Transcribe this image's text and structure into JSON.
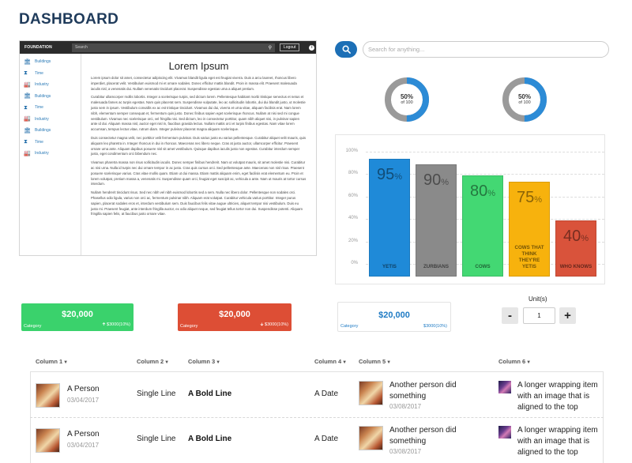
{
  "page": {
    "title": "DASHBOARD"
  },
  "foundation": {
    "brand": "FOUNDATION",
    "search_placeholder": "Search",
    "logout": "Logout",
    "info_icon": "i",
    "sidebar": [
      {
        "label": "Buildings",
        "icon": "building-icon"
      },
      {
        "label": "Time",
        "icon": "hourglass-icon"
      },
      {
        "label": "Industry",
        "icon": "factory-icon"
      },
      {
        "label": "Buildings",
        "icon": "building-icon"
      },
      {
        "label": "Time",
        "icon": "hourglass-icon"
      },
      {
        "label": "Industry",
        "icon": "factory-icon"
      },
      {
        "label": "Buildings",
        "icon": "building-icon"
      },
      {
        "label": "Time",
        "icon": "hourglass-icon"
      },
      {
        "label": "Industry",
        "icon": "factory-icon"
      }
    ],
    "heading": "Lorem Ipsum",
    "paragraphs": [
      "Lorem ipsum dolor sit amet, consectetur adipiscing elit. Vivamus blandit ligula eget est feugiat viverra. Duis a arcu laoreet, rhoncus libero imperdiet, placerat velit. Vestibulum euismod mi et ornare sodales. Donec efficitur mattis blandit. Proin in massa elit. Praesent malesuada iaculis nisl, a venenatis dui. Nullam venenatis tincidunt placerat. Suspendisse egestas urna a aliquet pretium.",
      "Curabitur ullamcorper mollis lobortis. Integer a scelerisque turpis, sed dictum lorem. Pellentesque habitant morbi tristique senectus et netus et malesuada fames ac turpis egestas. Nam quis placerat sem. Suspendisse vulputate, leo ac sollicitudin lobortis, dui dui blandit justo, ut molestie justo sem in ipsum. Vestibulum convallis ex ac est tristique tincidunt. Vivamus dui dui, viverra et urna vitae, aliquam facilisis erat. Nam lorem nibh, elementum semper consequat et, fermentum quis justo. Donec finibus sapien eget scelerisque rhoncus. Nullam at nisi sed mi congue vestibulum. Vivamus nec scelerisque orci, vel fringilla nisi. Sed dictum, leo in consectetur porttitor, quam nibh aliquet nisi, in pulvinar sapien ante id dui. Aliquam massa nisl, auctor eget nisl in, faucibus gravida lectus. Nullam mattis orci et turpis finibus egestas. Nam vitae lorem accumsan, tempus lectus vitae, rutrum diam. Integer pulvinar placerat magna aliquam scelerisque.",
      "Duis consectetur magna velit, nec porttitor velit fermentum pulvinar. Duis varius justo eu varius pellentesque. Curabitur aliquet velit mauris, quis aliquam leo pharetra in. Integer rhoncus in dui in rhoncus. Maecenas nec libero neque. Cras at justo auctor, ullamcorper efficitur. Praesent ornare urna ante. Aliquam dapibus posuere nisl sit amet vestibulum. Quisque dapibus iaculis justo non egestas. Curabitur interdum semper justo, eget condimentum orci bibendum nec.",
      "Vivamus pharetra massa non risus sollicitudin iaculis. Donec semper finibus hendrerit. Nam ut volutpat mauris, sit amet molestie nisi. Curabitur ac nisi urna. Nulla id turpis nec dui ornare tempor in ac justo. Cras quis cursus orci. Sed pellentesque ante. Maecenas non nisl risus. Praesent posuere scelerisque varius. Cras vitae mollis quam. Etiam ut dui massa. Etiam mattis aliquam enim, eget facilisis erat elementum eu. Proin et lorem volutpat, pretium massa a, venenatis mi. Suspendisse quam orci, feugiat eget suscipit ac, vehicula a ante. Nam ut mauris at tortor cursus interdum.",
      "Nullam hendrerit tincidunt risus. Sed nec nibh vel nibh euismod lobortis sed a sem. Nulla nec libero dolor. Pellentesque non sodales orci. Phasellus odio ligula, varius non orci ac, fermentum pulvinar nibh. Aliquam erat volutpat. Curabitur vehicula varius porttitor. Integer purus sapien, placerat sodales eros et, interdum vestibulum sem. Duis faucibus felis vitae augue ultricies, aliquet tempor nisi vestibulum. Duis eu justo mi. Praesent feugiat, ante interdum fringilla auctor, ex odio aliquet neque, sed feugiat tellus tortor non dui. Suspendisse potenti. Aliquam fringilla sapien felis, at faucibus justo ornare vitae."
    ]
  },
  "search": {
    "placeholder": "Search for anything...",
    "icon": "search-icon"
  },
  "donuts": [
    {
      "percent": 50,
      "label": "50%",
      "sub": "of 100",
      "color": "#2c8bd6",
      "track": "#9a9a9a"
    },
    {
      "percent": 50,
      "label": "50%",
      "sub": "of 100",
      "color": "#2c8bd6",
      "track": "#9a9a9a"
    }
  ],
  "chart_data": {
    "type": "bar",
    "categories": [
      "YETIS",
      "ZURBIANS",
      "COWS",
      "COWS THAT THINK THEY'RE YETIS",
      "WHO KNOWS"
    ],
    "values": [
      95,
      90,
      80,
      75,
      40
    ],
    "colors": [
      "#1f8ad8",
      "#8a8a8a",
      "#43d873",
      "#f7b20d",
      "#d9533b"
    ],
    "ylim": [
      0,
      100
    ],
    "yticks": [
      "100%",
      "80%",
      "60%",
      "40%",
      "20%",
      "0%"
    ],
    "title": "",
    "xlabel": "",
    "ylabel": ""
  },
  "stats": [
    {
      "amount": "$20,000",
      "category": "Category",
      "delta": "$3000(10%)",
      "color": "#3ad26c",
      "arrow": "up-arrow-icon"
    },
    {
      "amount": "$20,000",
      "category": "Category",
      "delta": "$3000(10%)",
      "color": "#dd4e35",
      "arrow": "down-arrow-icon"
    },
    {
      "amount": "$20,000",
      "category": "Category",
      "delta": "$3000(10%)",
      "color": "#1f7bc4"
    }
  ],
  "units": {
    "label": "Unit(s)",
    "value": "1",
    "minus": "-",
    "plus": "+"
  },
  "table": {
    "headers": [
      "Column 1",
      "Column 2",
      "Column 3",
      "Column 4",
      "Column 5",
      "Column 6"
    ],
    "rows": [
      {
        "name": "A Person",
        "date": "03/04/2017",
        "single": "Single Line",
        "bold": "A Bold Line",
        "adate": "A Date",
        "other": "Another person did something",
        "other_date": "03/08/2017",
        "wrap": "A longer wrapping item with an image that is aligned to the top"
      },
      {
        "name": "A Person",
        "date": "03/04/2017",
        "single": "Single Line",
        "bold": "A Bold Line",
        "adate": "A Date",
        "other": "Another person did something",
        "other_date": "03/08/2017",
        "wrap": "A longer wrapping item with an image that is aligned to the top"
      }
    ]
  }
}
